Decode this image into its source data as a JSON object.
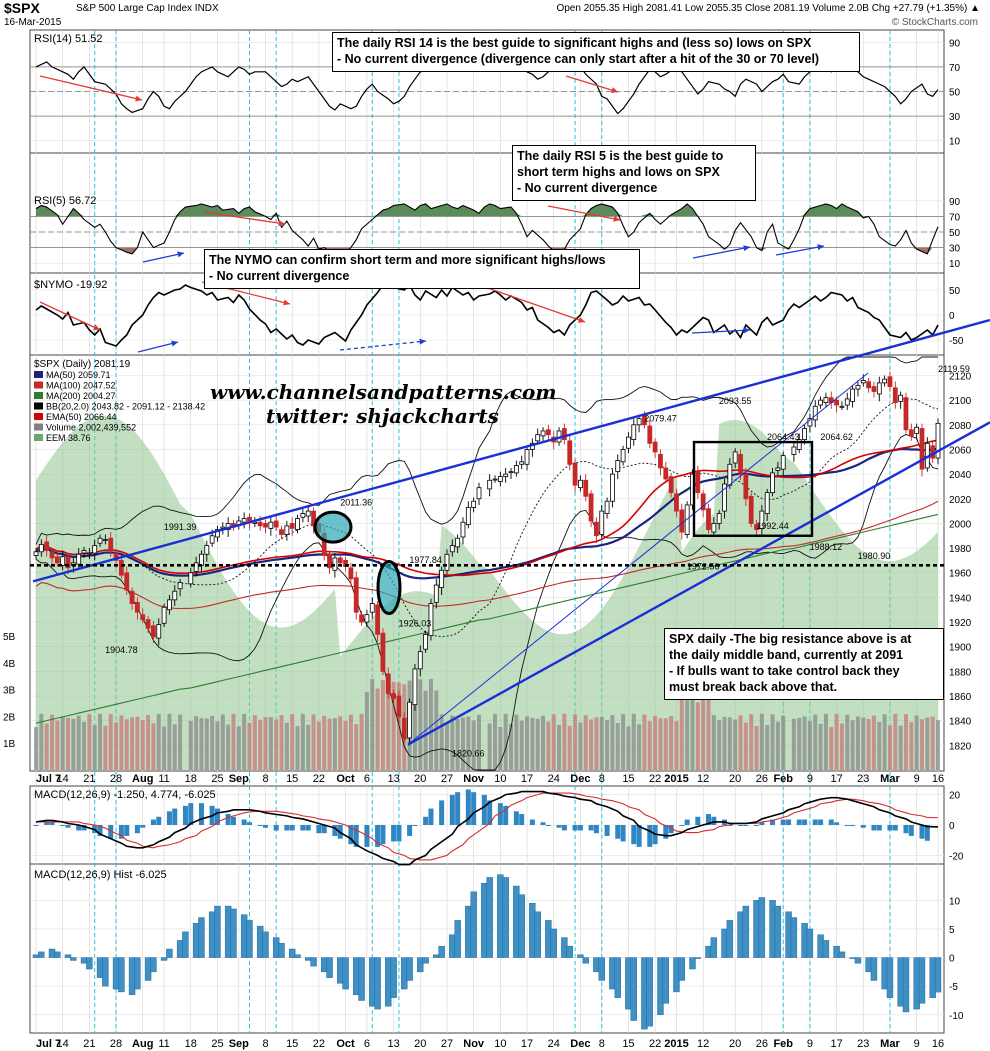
{
  "header": {
    "symbol": "$SPX",
    "name": "S&P 500 Large Cap Index INDX",
    "date": "16-Mar-2015",
    "quote": "Open 2055.35  High 2081.41  Low 2055.35  Close 2081.19  Volume 2.0B  Chg +27.79 (+1.35%) ▲",
    "watermark": "© StockCharts.com"
  },
  "notes": {
    "rsi14": [
      "The daily RSI 14 is the best guide to significant highs and (less so) lows on SPX",
      "- No current divergence (divergence can only start after a hit of the 30 or 70 level)"
    ],
    "rsi5": [
      "The daily RSI 5 is the best guide to",
      "short term highs and lows on SPX",
      "- No current divergence"
    ],
    "nymo": [
      "The NYMO can confirm short term and more significant highs/lows",
      "- No current divergence"
    ],
    "price": [
      "SPX daily -The big resistance above is at",
      "the daily middle band, currently at 2091",
      "- If bulls want to take control back they",
      "must break back above that."
    ]
  },
  "branding": {
    "site": "www.channelsandpatterns.com",
    "twitter": "twitter: shjackcharts"
  },
  "chart_data": [
    {
      "type": "line",
      "title": "RSI(14) 51.52",
      "panel": "rsi14",
      "y_ticks": [
        90,
        70,
        50,
        30,
        10
      ],
      "ylim": [
        0,
        100
      ],
      "levels": [
        70,
        50,
        30
      ],
      "values": [
        70,
        72,
        74,
        70,
        66,
        64,
        60,
        66,
        70,
        64,
        58,
        56,
        52,
        48,
        40,
        36,
        33,
        36,
        44,
        50,
        46,
        38,
        36,
        42,
        50,
        56,
        62,
        66,
        68,
        70,
        66,
        62,
        66,
        70,
        68,
        64,
        66,
        66,
        62,
        58,
        54,
        56,
        60,
        58,
        62,
        56,
        50,
        44,
        38,
        35,
        40,
        36,
        38,
        46,
        52,
        56,
        50,
        44,
        40,
        42,
        46,
        54,
        60,
        66,
        68,
        70,
        72,
        70,
        74,
        78,
        76,
        72,
        68,
        72,
        76,
        74,
        72,
        74,
        76,
        70,
        66,
        64,
        60,
        62,
        70,
        74,
        72,
        76,
        74,
        70,
        64,
        56,
        46,
        44,
        38,
        32,
        36,
        48,
        56,
        62,
        68,
        66,
        62,
        64,
        70,
        66,
        60,
        54,
        48,
        52,
        58,
        56,
        52,
        50,
        46,
        56,
        60,
        56,
        50,
        54,
        58,
        60,
        64,
        58,
        56,
        62,
        66,
        68,
        72,
        70,
        66,
        72,
        76,
        70,
        66,
        62,
        60,
        56,
        54,
        50,
        46,
        40,
        44,
        50,
        56,
        48,
        46,
        51.52
      ]
    },
    {
      "type": "line",
      "title": "RSI(5) 56.72",
      "panel": "rsi5",
      "y_ticks": [
        90,
        70,
        50,
        30,
        10
      ],
      "ylim": [
        0,
        100
      ],
      "levels": [
        70,
        50,
        30
      ],
      "values": [
        80,
        84,
        82,
        72,
        60,
        70,
        80,
        74,
        66,
        56,
        60,
        50,
        38,
        30,
        24,
        22,
        30,
        50,
        40,
        30,
        36,
        50,
        66,
        76,
        82,
        84,
        86,
        84,
        82,
        84,
        78,
        80,
        74,
        80,
        82,
        76,
        70,
        66,
        74,
        56,
        64,
        52,
        40,
        32,
        42,
        28,
        30,
        20,
        16,
        22,
        30,
        40,
        54,
        66,
        72,
        78,
        80,
        84,
        86,
        82,
        78,
        84,
        86,
        80,
        84,
        86,
        82,
        80,
        84,
        78,
        74,
        82,
        86,
        84,
        80,
        82,
        74,
        60,
        44,
        52,
        40,
        32,
        26,
        22,
        28,
        40,
        54,
        72,
        80,
        84,
        86,
        82,
        74,
        58,
        44,
        50,
        62,
        74,
        66,
        60,
        66,
        72,
        80,
        86,
        80,
        70,
        60,
        44,
        34,
        28,
        34,
        52,
        62,
        44,
        30,
        26,
        50,
        60,
        36,
        28,
        40,
        54,
        72,
        80,
        84,
        86,
        84,
        80,
        86,
        82,
        76,
        68,
        70,
        60,
        44,
        34,
        32,
        40,
        52,
        36,
        28,
        22,
        40,
        56.72
      ]
    },
    {
      "type": "line",
      "title": "$NYMO -19.92",
      "panel": "nymo",
      "y_ticks": [
        50,
        0,
        -50
      ],
      "ylim": [
        -80,
        80
      ],
      "values": [
        10,
        18,
        12,
        0,
        -8,
        5,
        -20,
        -15,
        -30,
        -40,
        -28,
        -55,
        -62,
        -50,
        -40,
        -20,
        0,
        20,
        35,
        45,
        40,
        50,
        52,
        60,
        55,
        48,
        40,
        45,
        30,
        35,
        25,
        40,
        30,
        12,
        -10,
        -18,
        -35,
        -28,
        -48,
        -40,
        -55,
        -60,
        -50,
        -58,
        -45,
        -40,
        -35,
        -52,
        -30,
        -15,
        0,
        20,
        45,
        60,
        65,
        55,
        50,
        60,
        40,
        30,
        48,
        35,
        50,
        38,
        55,
        40,
        45,
        30,
        38,
        42,
        48,
        40,
        30,
        38,
        25,
        10,
        15,
        -10,
        -25,
        -35,
        -30,
        -40,
        -20,
        0,
        20,
        45,
        48,
        30,
        20,
        25,
        38,
        28,
        35,
        20,
        22,
        10,
        -15,
        -25,
        -40,
        -30,
        -35,
        -15,
        -5,
        -10,
        -35,
        -20,
        -38,
        -30,
        -45,
        -20,
        -40,
        -15,
        -5,
        -20,
        -10,
        10,
        22,
        15,
        30,
        38,
        28,
        35,
        45,
        40,
        28,
        35,
        15,
        5,
        -5,
        -10,
        -25,
        -40,
        -45,
        -35,
        -50,
        -45,
        -30,
        -40,
        -19.92
      ]
    },
    {
      "type": "candlestick",
      "title": "$SPX (Daily) 2081.19",
      "panel": "price",
      "ylim": [
        1800,
        2135
      ],
      "y_ticks": [
        2120,
        2100,
        2080,
        2060,
        2040,
        2020,
        2000,
        1980,
        1960,
        1940,
        1920,
        1900,
        1880,
        1860,
        1840,
        1820
      ],
      "volume_ticks": [
        "5B",
        "4B",
        "3B",
        "2B",
        "1B"
      ],
      "legend": [
        "MA(50) 2059.71",
        "MA(100) 2047.52",
        "MA(200) 2004.27",
        "BB(20,2.0) 2043.82 - 2091.12 - 2138.42",
        "EMA(50) 2066.44",
        "Volume 2,002,439,552",
        "EEM 38.76"
      ],
      "legend_colors": [
        "#1a237e",
        "#c62828",
        "#2e7d32",
        "#000000",
        "#d50000",
        "#808080",
        "#6aa86a"
      ],
      "labels": [
        {
          "text": "1991.39",
          "x": 27,
          "y": 1991.39
        },
        {
          "text": "1904.78",
          "x": 16,
          "y": 1904.78
        },
        {
          "text": "2011.36",
          "x": 60,
          "y": 2011.36
        },
        {
          "text": "1977.84",
          "x": 73,
          "y": 1977.84
        },
        {
          "text": "1926.03",
          "x": 71,
          "y": 1926.03
        },
        {
          "text": "1820.66",
          "x": 81,
          "y": 1820.66
        },
        {
          "text": "2079.47",
          "x": 117,
          "y": 2079.47
        },
        {
          "text": "2093.55",
          "x": 131,
          "y": 2093.55
        },
        {
          "text": "1972.56",
          "x": 125,
          "y": 1972.56
        },
        {
          "text": "2064.43",
          "x": 140,
          "y": 2064.43
        },
        {
          "text": "2064.62",
          "x": 150,
          "y": 2064.62
        },
        {
          "text": "1992.44",
          "x": 138,
          "y": 1992.44
        },
        {
          "text": "1988.12",
          "x": 148,
          "y": 1988.12
        },
        {
          "text": "1980.90",
          "x": 157,
          "y": 1980.9
        },
        {
          "text": "2119.59",
          "x": 172,
          "y": 2119.59
        },
        {
          "text": "2039.69",
          "x": 183,
          "y": 2039.69
        }
      ],
      "close": [
        1977,
        1983,
        1978,
        1972,
        1968,
        1973,
        1964,
        1968,
        1975,
        1978,
        1976,
        1982,
        1988,
        1987,
        1978,
        1970,
        1958,
        1946,
        1935,
        1928,
        1922,
        1915,
        1908,
        1918,
        1932,
        1938,
        1945,
        1952,
        1960,
        1968,
        1975,
        1982,
        1990,
        1995,
        1997,
        2000,
        1997,
        2002,
        2004,
        2002,
        2001,
        1998,
        1997,
        2001,
        1997,
        1991,
        1998,
        1996,
        2004,
        2008,
        2010,
        1998,
        1993,
        1974,
        1964,
        1972,
        1968,
        1965,
        1955,
        1928,
        1920,
        1926,
        1935,
        1910,
        1880,
        1862,
        1858,
        1843,
        1825,
        1855,
        1882,
        1896,
        1910,
        1935,
        1950,
        1962,
        1975,
        1982,
        1988,
        2001,
        2013,
        2018,
        2029,
        2035,
        2036,
        2038,
        2040,
        2042,
        2047,
        2050,
        2060,
        2065,
        2072,
        2075,
        2072,
        2066,
        2075,
        2068,
        2048,
        2031,
        2035,
        2022,
        2002,
        1990,
        2010,
        2018,
        2040,
        2051,
        2060,
        2070,
        2080,
        2085,
        2080,
        2065,
        2058,
        2045,
        2036,
        2025,
        2010,
        1993,
        2015,
        2040,
        2025,
        2011,
        1995,
        2000,
        2008,
        2032,
        2048,
        2058,
        2040,
        2020,
        2000,
        1995,
        2010,
        2025,
        2041,
        2045,
        2055,
        2062,
        2068,
        2077,
        2085,
        2095,
        2100,
        2102,
        2098,
        2096,
        2095,
        2101,
        2109,
        2112,
        2116,
        2110,
        2107,
        2114,
        2117,
        2111,
        2098,
        2104,
        2076,
        2071,
        2078,
        2044,
        2065,
        2053,
        2081.19
      ],
      "volume_scale_ticks": [
        5,
        4,
        3,
        2,
        1
      ]
    },
    {
      "type": "line",
      "title": "MACD(12,26,9) -1.250, 4.774, -6.025",
      "panel": "macd",
      "y_ticks": [
        20,
        0,
        -20
      ],
      "ylim": [
        -25,
        25
      ],
      "series": [
        {
          "name": "MACD",
          "values": [
            2,
            3,
            3,
            2,
            1,
            0,
            -1,
            -3,
            -6,
            -9,
            -12,
            -14,
            -15,
            -15,
            -13,
            -11,
            -8,
            -5,
            -2,
            1,
            4,
            6,
            8,
            9,
            10,
            10,
            10,
            9,
            8,
            7,
            6,
            5,
            4,
            3,
            1,
            0,
            -2,
            -5,
            -9,
            -13,
            -17,
            -20,
            -22,
            -24,
            -26,
            -26,
            -23,
            -20,
            -16,
            -11,
            -6,
            -1,
            4,
            8,
            12,
            15,
            18,
            20,
            21,
            22,
            22,
            22,
            21,
            20,
            19,
            18,
            17,
            16,
            14,
            12,
            9,
            6,
            3,
            -1,
            -4,
            -6,
            -7,
            -7,
            -5,
            -3,
            -1,
            1,
            2,
            2,
            1,
            1,
            1,
            2,
            4,
            6,
            8,
            10,
            12,
            14,
            16,
            17,
            18,
            18,
            17,
            16,
            14,
            12,
            10,
            8,
            6,
            4,
            2,
            0,
            -1,
            -1.25
          ]
        },
        {
          "name": "Signal",
          "values": [
            2,
            2,
            2,
            2,
            2,
            2,
            1,
            0,
            -2,
            -4,
            -7,
            -10,
            -12,
            -14,
            -15,
            -14,
            -13,
            -11,
            -9,
            -7,
            -4,
            -1,
            2,
            5,
            7,
            8,
            9,
            9,
            9,
            9,
            8,
            7,
            6,
            5,
            4,
            3,
            2,
            0,
            -2,
            -5,
            -9,
            -12,
            -15,
            -18,
            -20,
            -22,
            -23,
            -23,
            -22,
            -20,
            -17,
            -13,
            -9,
            -4,
            1,
            6,
            10,
            13,
            16,
            18,
            20,
            21,
            21,
            21,
            21,
            20,
            19,
            18,
            17,
            16,
            14,
            12,
            10,
            7,
            4,
            1,
            -2,
            -4,
            -5,
            -5,
            -4,
            -3,
            -1,
            0,
            1,
            1,
            1,
            2,
            3,
            4,
            6,
            8,
            10,
            12,
            14,
            15,
            16,
            17,
            17,
            16,
            15,
            14,
            12,
            10,
            8,
            7,
            6,
            5,
            4.774
          ]
        }
      ]
    },
    {
      "type": "bar",
      "title": "MACD(12,26,9) Hist -6.025",
      "panel": "hist",
      "y_ticks": [
        10,
        5,
        0,
        -5,
        -10
      ],
      "ylim": [
        -13,
        16
      ],
      "values": [
        0.5,
        1,
        1.5,
        1,
        0.5,
        -0.5,
        -1,
        -2,
        -3.5,
        -5,
        -5.5,
        -6,
        -6.5,
        -5.5,
        -4,
        -2.5,
        -0.5,
        1.5,
        3,
        4.5,
        6,
        7,
        8,
        9,
        9,
        8.5,
        7.5,
        6.5,
        5.5,
        4.5,
        3.5,
        2.5,
        1.5,
        0.5,
        -0.5,
        -1.5,
        -2.5,
        -3.5,
        -4.5,
        -5.5,
        -6.5,
        -7.5,
        -8.5,
        -9,
        -8.5,
        -7,
        -5.5,
        -4,
        -2.5,
        -1,
        0.5,
        2,
        4,
        6.5,
        9,
        11.5,
        13,
        14,
        14.5,
        14,
        12.5,
        11,
        9.5,
        8,
        6.5,
        5,
        3.5,
        2,
        0.5,
        -1,
        -2.5,
        -4,
        -5.5,
        -7,
        -9,
        -11,
        -12.5,
        -12,
        -10,
        -8,
        -6,
        -4,
        -2,
        0,
        2,
        3.5,
        5,
        6.5,
        8,
        9,
        10,
        10.5,
        10,
        9,
        8,
        7,
        6,
        5,
        4,
        3,
        2,
        1,
        0,
        -1,
        -2.5,
        -4,
        -5.5,
        -7,
        -8.5,
        -9.5,
        -9,
        -8,
        -7,
        -6.025
      ]
    }
  ],
  "x_axis": {
    "labels": [
      "Jul 7",
      "14",
      "21",
      "28",
      "Aug",
      "11",
      "18",
      "25",
      "Sep",
      "8",
      "15",
      "22",
      "Oct",
      "6",
      "13",
      "20",
      "27",
      "Nov",
      "10",
      "17",
      "24",
      "Dec",
      "8",
      "15",
      "22",
      "2015",
      "12",
      "20",
      "26",
      "Feb",
      "9",
      "17",
      "23",
      "Mar",
      "9",
      "16"
    ],
    "bold": [
      "Jul 7",
      "Aug",
      "Sep",
      "Oct",
      "Nov",
      "Dec",
      "2015",
      "Feb",
      "Mar"
    ]
  }
}
